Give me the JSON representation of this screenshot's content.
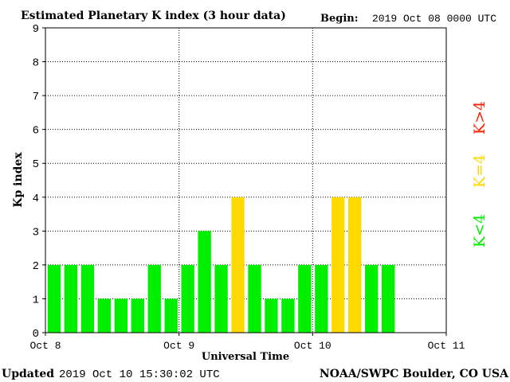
{
  "chart_data": {
    "type": "bar",
    "title": "Estimated Planetary K index (3 hour data)",
    "begin_label": "Begin:",
    "begin_value": "2019 Oct 08 0000 UTC",
    "xlabel": "Universal Time",
    "ylabel": "Kp index",
    "ylim": [
      0,
      9
    ],
    "yticks": [
      "0",
      "1",
      "2",
      "3",
      "4",
      "5",
      "6",
      "7",
      "8",
      "9"
    ],
    "xlim_days": [
      0,
      3
    ],
    "xticks": [
      {
        "label": "Oct 8",
        "day": 0
      },
      {
        "label": "Oct 9",
        "day": 1
      },
      {
        "label": "Oct 10",
        "day": 2
      },
      {
        "label": "Oct 11",
        "day": 3
      }
    ],
    "interval_hours": 3,
    "values": [
      2,
      2,
      2,
      1,
      1,
      1,
      2,
      1,
      2,
      3,
      2,
      4,
      2,
      1,
      1,
      2,
      2,
      4,
      4,
      2,
      2
    ],
    "grid": true,
    "colors": {
      "below4": "#00f000",
      "equal4": "#ffd800",
      "above4": "#ff2000"
    },
    "legend": [
      {
        "label": "K<4",
        "color": "#00f000"
      },
      {
        "label": "K=4",
        "color": "#ffd800"
      },
      {
        "label": "K>4",
        "color": "#ff2000"
      }
    ],
    "legend_placement": "right"
  },
  "footer": {
    "updated_label": "Updated",
    "updated_value": "2019 Oct 10 15:30:02 UTC",
    "source": "NOAA/SWPC Boulder, CO USA"
  }
}
